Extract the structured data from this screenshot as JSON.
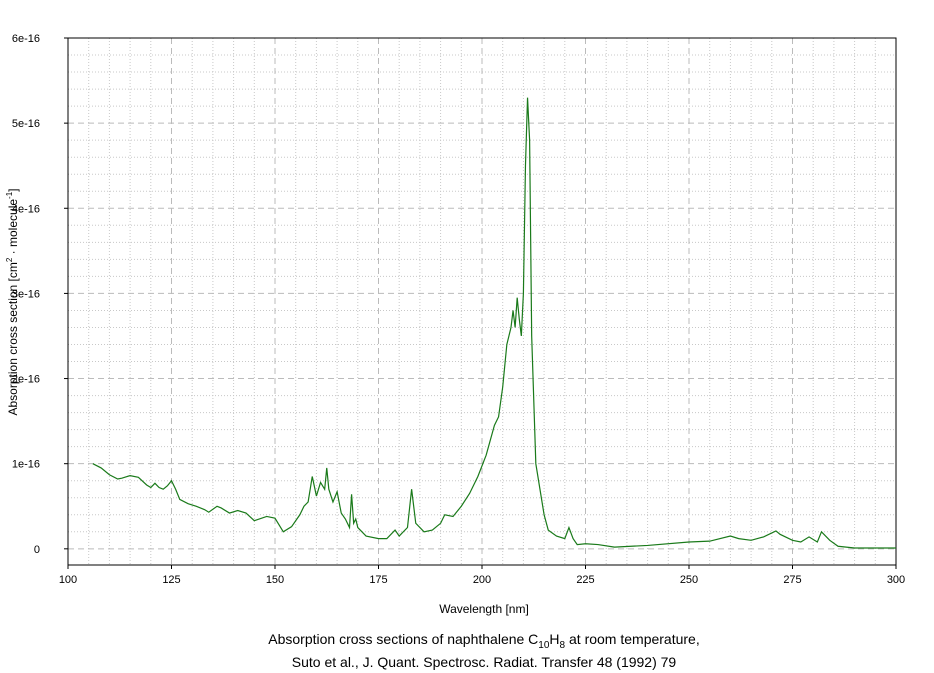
{
  "chart_data": {
    "type": "line",
    "x_label": "Wavelength [nm]",
    "y_label_parts": [
      "Absorption cross section [cm",
      "2",
      " · molecule",
      "-1",
      "]"
    ],
    "caption_line1_parts": [
      "Absorption cross sections of naphthalene C",
      "10",
      "H",
      "8",
      " at room temperature,"
    ],
    "caption_line2": "Suto et al., J. Quant. Spectrosc. Radiat. Transfer 48 (1992) 79",
    "color": "#1a7a1a",
    "grid": true,
    "xlim": [
      100,
      300
    ],
    "xticks": [
      100,
      125,
      150,
      175,
      200,
      225,
      250,
      275,
      300
    ],
    "ylim": [
      -1.9e-17,
      6e-16
    ],
    "yticks": [
      0,
      1e-16,
      2e-16,
      3e-16,
      4e-16,
      5e-16,
      6e-16
    ],
    "x": [
      106,
      108,
      110,
      112,
      113,
      115,
      117,
      119,
      120,
      121,
      122,
      123,
      124,
      125,
      126,
      127,
      129,
      131,
      133,
      134,
      136,
      137,
      139,
      141,
      143,
      145,
      148,
      150,
      152,
      154,
      156,
      157,
      158,
      159,
      160,
      161,
      162,
      162.5,
      163,
      164,
      165,
      166,
      167,
      168,
      168.5,
      169,
      169.5,
      170,
      172,
      175,
      177,
      179,
      180,
      182,
      183,
      184,
      186,
      188,
      190,
      191,
      193,
      195,
      197,
      199,
      201,
      203,
      204,
      205,
      206,
      207,
      207.5,
      208,
      208.5,
      209,
      209.5,
      210,
      210.5,
      211,
      211.5,
      212,
      213,
      214,
      215,
      216,
      218,
      220,
      221,
      222,
      223,
      225,
      228,
      232,
      240,
      250,
      255,
      260,
      262,
      265,
      268,
      271,
      272,
      275,
      277,
      279,
      281,
      282,
      284,
      286,
      290,
      300
    ],
    "values": [
      1e-16,
      9.5e-17,
      8.7e-17,
      8.2e-17,
      8.3e-17,
      8.6e-17,
      8.4e-17,
      7.5e-17,
      7.2e-17,
      7.7e-17,
      7.2e-17,
      7e-17,
      7.4e-17,
      8e-17,
      7e-17,
      5.8e-17,
      5.3e-17,
      5e-17,
      4.6e-17,
      4.3e-17,
      5e-17,
      4.8e-17,
      4.2e-17,
      4.5e-17,
      4.2e-17,
      3.3e-17,
      3.8e-17,
      3.6e-17,
      2e-17,
      2.6e-17,
      4e-17,
      5e-17,
      5.5e-17,
      8.5e-17,
      6.2e-17,
      7.8e-17,
      7e-17,
      9.5e-17,
      7e-17,
      5.5e-17,
      6.7e-17,
      4.2e-17,
      3.5e-17,
      2.5e-17,
      6.4e-17,
      3e-17,
      3.5e-17,
      2.5e-17,
      1.5e-17,
      1.2e-17,
      1.2e-17,
      2.2e-17,
      1.5e-17,
      2.5e-17,
      7e-17,
      3e-17,
      2e-17,
      2.2e-17,
      3e-17,
      4e-17,
      3.8e-17,
      5e-17,
      6.5e-17,
      8.5e-17,
      1.1e-16,
      1.45e-16,
      1.55e-16,
      1.9e-16,
      2.4e-16,
      2.6e-16,
      2.8e-16,
      2.6e-16,
      2.95e-16,
      2.7e-16,
      2.5e-16,
      3e-16,
      4.5e-16,
      5.3e-16,
      4.8e-16,
      2.5e-16,
      1e-16,
      7e-17,
      4e-17,
      2.2e-17,
      1.5e-17,
      1.2e-17,
      2.5e-17,
      1.2e-17,
      5e-18,
      6e-18,
      5e-18,
      2e-18,
      4e-18,
      8e-18,
      9e-18,
      1.5e-17,
      1.2e-17,
      1e-17,
      1.4e-17,
      2.1e-17,
      1.7e-17,
      1e-17,
      8e-18,
      1.4e-17,
      8e-18,
      2e-17,
      1e-17,
      3e-18,
      1e-18,
      1e-18
    ]
  }
}
